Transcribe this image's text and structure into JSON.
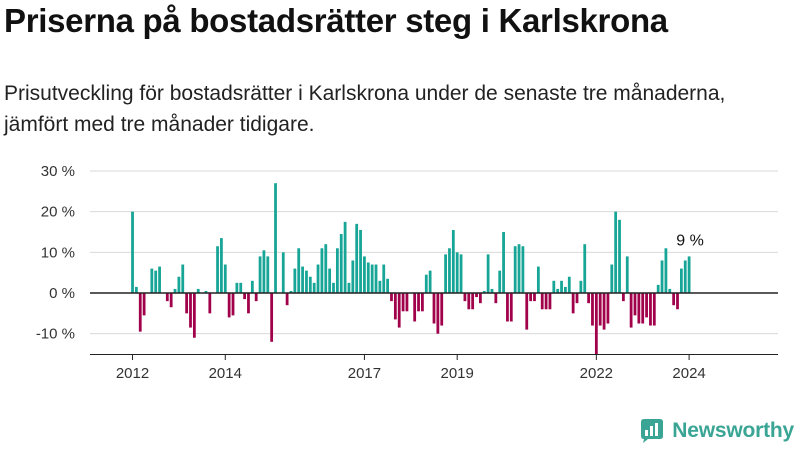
{
  "title": "Priserna på bostadsrätter steg i Karlskrona",
  "subtitle": "Prisutveckling för bostadsrätter i Karlskrona under de senaste tre månaderna, jämfört med tre månader tidigare.",
  "brand": {
    "name": "Newsworthy",
    "icon": "bar-chart-icon",
    "color": "#3aa595"
  },
  "colors": {
    "positive": "#16a596",
    "negative": "#a1004a",
    "axis": "#222222",
    "grid": "#d9d9d9"
  },
  "chart_data": {
    "type": "bar",
    "x_start": "2012-01",
    "frequency": "monthly",
    "xlim": [
      "2011-02",
      "2025-12"
    ],
    "x_ticks": [
      {
        "label": "2012",
        "at": "2012-01"
      },
      {
        "label": "2014",
        "at": "2014-01"
      },
      {
        "label": "2017",
        "at": "2017-01"
      },
      {
        "label": "2019",
        "at": "2019-01"
      },
      {
        "label": "2022",
        "at": "2022-01"
      },
      {
        "label": "2024",
        "at": "2024-01"
      }
    ],
    "y_ticks": [
      "30 %",
      "20 %",
      "10 %",
      "0 %",
      "-10 %"
    ],
    "ylim": [
      -15,
      30
    ],
    "grid": true,
    "values": [
      20,
      1.5,
      -9.5,
      -5.5,
      null,
      6,
      5.5,
      6.5,
      null,
      -2,
      -3.5,
      1,
      4,
      7,
      -5,
      -8.5,
      -11,
      1,
      null,
      0.5,
      -5,
      0,
      11.5,
      13.5,
      7,
      -6,
      -5.5,
      2.5,
      2.5,
      -1.5,
      -5,
      3,
      -2,
      9,
      10.5,
      9,
      -12,
      27,
      null,
      10,
      -3,
      0.5,
      6,
      11,
      6.5,
      5.5,
      4,
      2.5,
      7,
      11,
      12,
      6,
      2.5,
      11,
      14.5,
      17.5,
      2.5,
      8,
      17,
      15.5,
      9,
      7.5,
      7,
      7,
      3,
      7,
      3.5,
      -2,
      -6.5,
      -8.5,
      -4.5,
      -4.5,
      null,
      -7,
      -4.5,
      -4.5,
      4.5,
      5.5,
      -7.5,
      -10,
      -8,
      9.5,
      11,
      15.5,
      10,
      9.5,
      -2,
      -4,
      -4,
      -1,
      -2.5,
      0.5,
      9.5,
      1,
      -2.5,
      5.5,
      15,
      -7,
      -7,
      11.5,
      12,
      11.5,
      -9,
      -2,
      -2,
      6.5,
      -4,
      -4,
      -4,
      3,
      1,
      3,
      1.5,
      4,
      -5,
      -2.5,
      3,
      12,
      -2.5,
      -8,
      -15,
      -8,
      -9,
      -7.5,
      7,
      20,
      18,
      -2,
      9,
      -8.5,
      -5.5,
      -7.5,
      -7.5,
      -6,
      -8,
      -8,
      2,
      8,
      11,
      1,
      -3,
      -4,
      6,
      8,
      9
    ],
    "annotation": {
      "label": "9 %",
      "value": 9
    }
  }
}
